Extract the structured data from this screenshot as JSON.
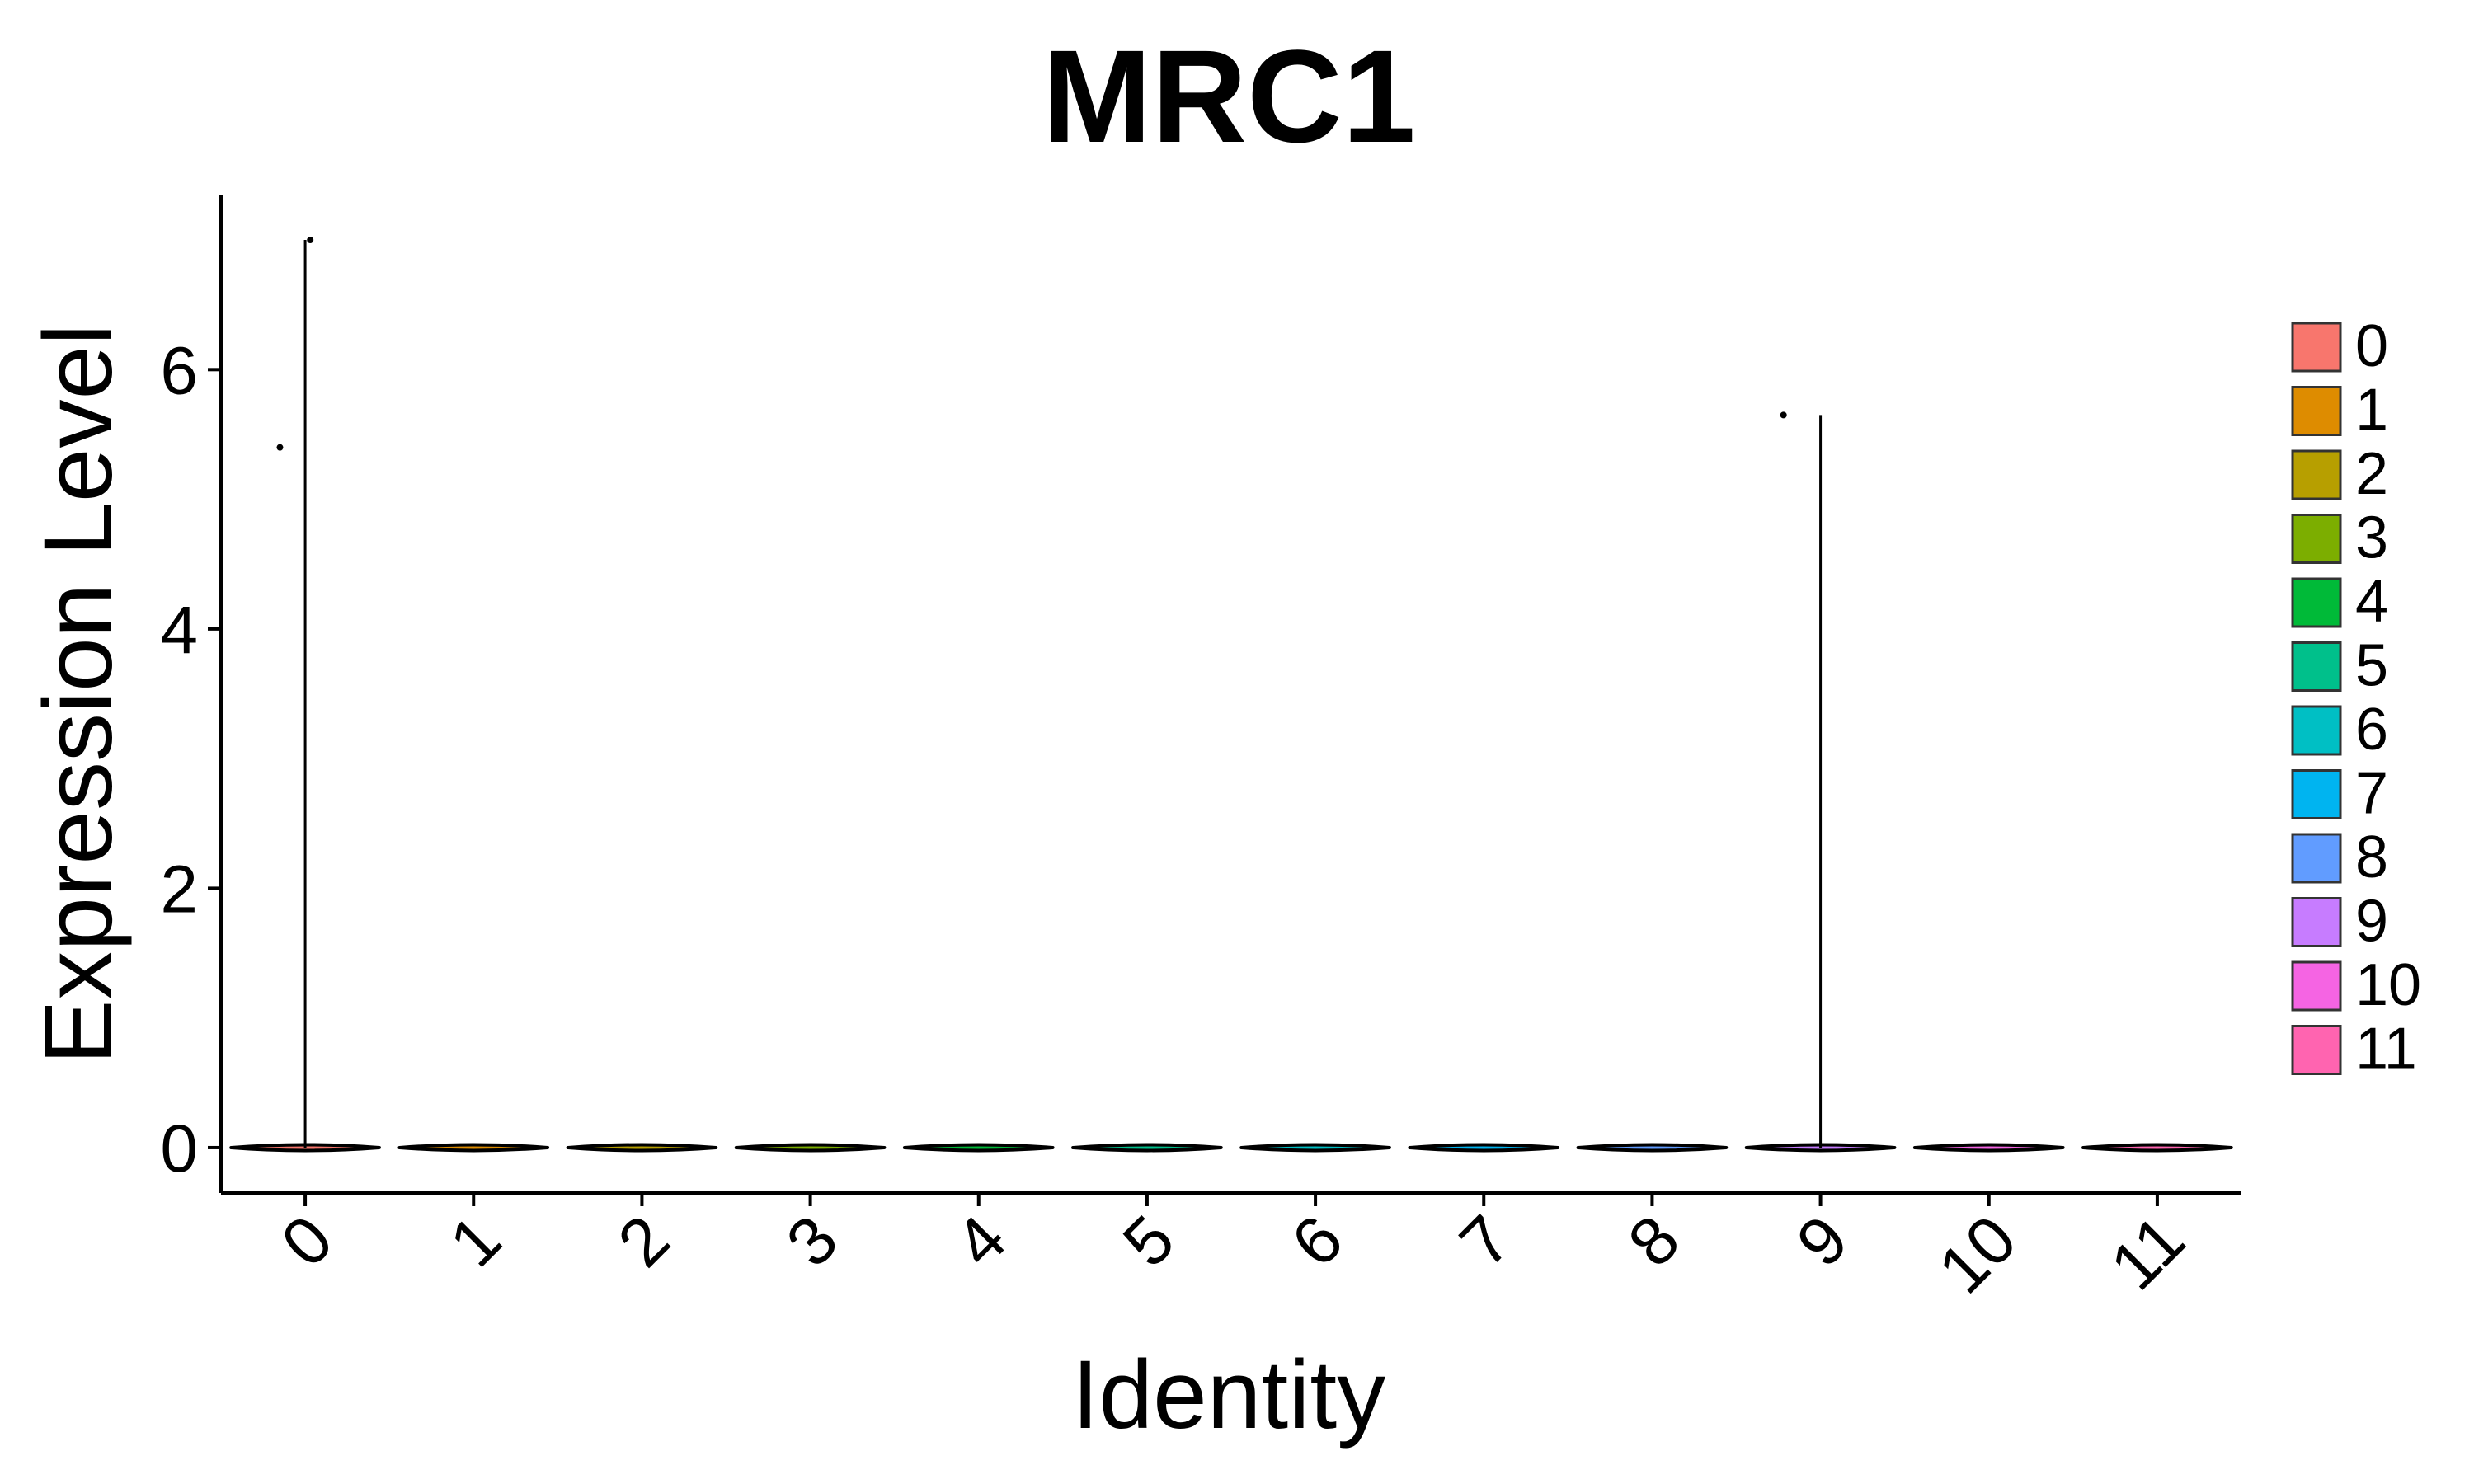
{
  "chart_data": {
    "type": "violin",
    "title": "MRC1",
    "xlabel": "Identity",
    "ylabel": "Expression Level",
    "categories": [
      "0",
      "1",
      "2",
      "3",
      "4",
      "5",
      "6",
      "7",
      "8",
      "9",
      "10",
      "11"
    ],
    "ylim": [
      -0.35,
      7.35
    ],
    "yticks": [
      0,
      2,
      4,
      6
    ],
    "violin_max": [
      7.0,
      0,
      0,
      0,
      0,
      0,
      0,
      0,
      0,
      5.65,
      0,
      0
    ],
    "points": [
      {
        "category": "0",
        "y": 5.4,
        "jitter": -0.15
      },
      {
        "category": "0",
        "y": 7.0,
        "jitter": 0.03
      },
      {
        "category": "9",
        "y": 5.65,
        "jitter": -0.22
      }
    ],
    "legend": {
      "placement": "right",
      "entries": [
        {
          "label": "0",
          "color": "#F8766D"
        },
        {
          "label": "1",
          "color": "#DE8C00"
        },
        {
          "label": "2",
          "color": "#B79F00"
        },
        {
          "label": "3",
          "color": "#7CAE00"
        },
        {
          "label": "4",
          "color": "#00BA38"
        },
        {
          "label": "5",
          "color": "#00C08B"
        },
        {
          "label": "6",
          "color": "#00BFC4"
        },
        {
          "label": "7",
          "color": "#00B4F0"
        },
        {
          "label": "8",
          "color": "#619CFF"
        },
        {
          "label": "9",
          "color": "#C77CFF"
        },
        {
          "label": "10",
          "color": "#F564E3"
        },
        {
          "label": "11",
          "color": "#FF64B0"
        }
      ]
    },
    "grid": false
  }
}
